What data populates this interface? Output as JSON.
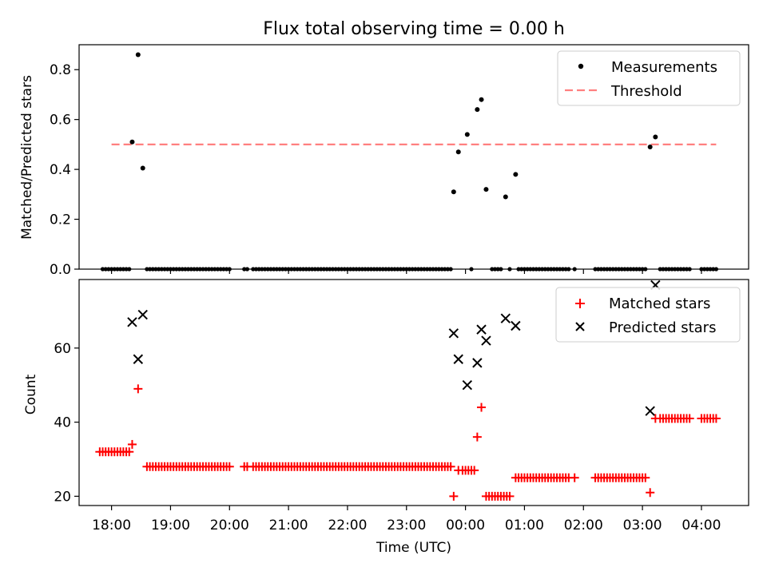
{
  "title": "Flux total observing time = 0.00 h",
  "chart_data": [
    {
      "type": "scatter",
      "ylabel": "Matched/Predicted stars",
      "xlabel": "",
      "xlim_hours": [
        17.45,
        28.8
      ],
      "ylim": [
        0,
        0.9
      ],
      "yticks": [
        0.0,
        0.2,
        0.4,
        0.6,
        0.8
      ],
      "ytick_labels": [
        "0.0",
        "0.2",
        "0.4",
        "0.6",
        "0.8"
      ],
      "legend": {
        "placement": "upper-right",
        "entries": [
          {
            "label": "Measurements",
            "marker": "dot"
          },
          {
            "label": "Threshold",
            "marker": "dashed-line"
          }
        ]
      },
      "threshold": {
        "value": 0.5,
        "x_range_hours": [
          18.0,
          28.25
        ],
        "color": "#ff7f7f"
      },
      "measurements": [
        [
          18.35,
          0.51
        ],
        [
          18.45,
          0.86
        ],
        [
          18.53,
          0.405
        ],
        [
          23.8,
          0.31
        ],
        [
          23.88,
          0.47
        ],
        [
          24.03,
          0.54
        ],
        [
          24.2,
          0.64
        ],
        [
          24.27,
          0.68
        ],
        [
          24.35,
          0.32
        ],
        [
          24.68,
          0.29
        ],
        [
          24.85,
          0.38
        ],
        [
          27.13,
          0.49
        ],
        [
          27.22,
          0.53
        ]
      ],
      "zero_times": [
        17.85,
        17.9,
        17.95,
        18.0,
        18.05,
        18.1,
        18.15,
        18.2,
        18.25,
        18.3,
        18.6,
        18.65,
        18.7,
        18.75,
        18.8,
        18.85,
        18.9,
        18.95,
        19.0,
        19.05,
        19.1,
        19.15,
        19.2,
        19.25,
        19.3,
        19.35,
        19.4,
        19.45,
        19.5,
        19.55,
        19.6,
        19.65,
        19.7,
        19.75,
        19.8,
        19.85,
        19.9,
        19.95,
        20.0,
        20.25,
        20.3,
        20.4,
        20.45,
        20.5,
        20.55,
        20.6,
        20.65,
        20.7,
        20.75,
        20.8,
        20.85,
        20.9,
        20.95,
        21.0,
        21.05,
        21.1,
        21.15,
        21.2,
        21.25,
        21.3,
        21.35,
        21.4,
        21.45,
        21.5,
        21.55,
        21.6,
        21.65,
        21.7,
        21.75,
        21.8,
        21.85,
        21.9,
        21.95,
        22.0,
        22.05,
        22.1,
        22.15,
        22.2,
        22.25,
        22.3,
        22.35,
        22.4,
        22.45,
        22.5,
        22.55,
        22.6,
        22.65,
        22.7,
        22.75,
        22.8,
        22.85,
        22.9,
        22.95,
        23.0,
        23.05,
        23.1,
        23.15,
        23.2,
        23.25,
        23.3,
        23.35,
        23.4,
        23.45,
        23.5,
        23.55,
        23.6,
        23.65,
        23.7,
        23.75,
        24.1,
        24.45,
        24.5,
        24.55,
        24.6,
        24.75,
        24.9,
        24.95,
        25.0,
        25.05,
        25.1,
        25.15,
        25.2,
        25.25,
        25.3,
        25.35,
        25.4,
        25.45,
        25.5,
        25.55,
        25.6,
        25.65,
        25.7,
        25.75,
        25.85,
        26.2,
        26.25,
        26.3,
        26.35,
        26.4,
        26.45,
        26.5,
        26.55,
        26.6,
        26.65,
        26.7,
        26.75,
        26.8,
        26.85,
        26.9,
        26.95,
        27.0,
        27.05,
        27.3,
        27.35,
        27.4,
        27.45,
        27.5,
        27.55,
        27.6,
        27.65,
        27.7,
        27.75,
        27.8,
        28.0,
        28.05,
        28.1,
        28.15,
        28.2,
        28.25
      ]
    },
    {
      "type": "scatter",
      "ylabel": "Count",
      "xlabel": "Time (UTC)",
      "xlim_hours": [
        17.45,
        28.8
      ],
      "ylim": [
        17.5,
        78.5
      ],
      "yticks": [
        20,
        40,
        60
      ],
      "ytick_labels": [
        "20",
        "40",
        "60"
      ],
      "xticks_hours": [
        18,
        19,
        20,
        21,
        22,
        23,
        24,
        25,
        26,
        27,
        28
      ],
      "xtick_labels": [
        "18:00",
        "19:00",
        "20:00",
        "21:00",
        "22:00",
        "23:00",
        "00:00",
        "01:00",
        "02:00",
        "03:00",
        "04:00"
      ],
      "legend": {
        "placement": "upper-right",
        "entries": [
          {
            "label": "Matched stars",
            "marker": "plus",
            "color": "#ff0000"
          },
          {
            "label": "Predicted stars",
            "marker": "x",
            "color": "#000000"
          }
        ]
      },
      "matched_stars": [
        [
          17.8,
          32
        ],
        [
          17.85,
          32
        ],
        [
          17.9,
          32
        ],
        [
          17.95,
          32
        ],
        [
          18.0,
          32
        ],
        [
          18.05,
          32
        ],
        [
          18.1,
          32
        ],
        [
          18.15,
          32
        ],
        [
          18.2,
          32
        ],
        [
          18.25,
          32
        ],
        [
          18.3,
          32
        ],
        [
          18.35,
          34
        ],
        [
          18.45,
          49
        ],
        [
          18.6,
          28
        ],
        [
          18.65,
          28
        ],
        [
          18.7,
          28
        ],
        [
          18.75,
          28
        ],
        [
          18.8,
          28
        ],
        [
          18.85,
          28
        ],
        [
          18.9,
          28
        ],
        [
          18.95,
          28
        ],
        [
          19.0,
          28
        ],
        [
          19.05,
          28
        ],
        [
          19.1,
          28
        ],
        [
          19.15,
          28
        ],
        [
          19.2,
          28
        ],
        [
          19.25,
          28
        ],
        [
          19.3,
          28
        ],
        [
          19.35,
          28
        ],
        [
          19.4,
          28
        ],
        [
          19.45,
          28
        ],
        [
          19.5,
          28
        ],
        [
          19.55,
          28
        ],
        [
          19.6,
          28
        ],
        [
          19.65,
          28
        ],
        [
          19.7,
          28
        ],
        [
          19.75,
          28
        ],
        [
          19.8,
          28
        ],
        [
          19.85,
          28
        ],
        [
          19.9,
          28
        ],
        [
          19.95,
          28
        ],
        [
          20.0,
          28
        ],
        [
          20.25,
          28
        ],
        [
          20.3,
          28
        ],
        [
          20.4,
          28
        ],
        [
          20.45,
          28
        ],
        [
          20.5,
          28
        ],
        [
          20.55,
          28
        ],
        [
          20.6,
          28
        ],
        [
          20.65,
          28
        ],
        [
          20.7,
          28
        ],
        [
          20.75,
          28
        ],
        [
          20.8,
          28
        ],
        [
          20.85,
          28
        ],
        [
          20.9,
          28
        ],
        [
          20.95,
          28
        ],
        [
          21.0,
          28
        ],
        [
          21.05,
          28
        ],
        [
          21.1,
          28
        ],
        [
          21.15,
          28
        ],
        [
          21.2,
          28
        ],
        [
          21.25,
          28
        ],
        [
          21.3,
          28
        ],
        [
          21.35,
          28
        ],
        [
          21.4,
          28
        ],
        [
          21.45,
          28
        ],
        [
          21.5,
          28
        ],
        [
          21.55,
          28
        ],
        [
          21.6,
          28
        ],
        [
          21.65,
          28
        ],
        [
          21.7,
          28
        ],
        [
          21.75,
          28
        ],
        [
          21.8,
          28
        ],
        [
          21.85,
          28
        ],
        [
          21.9,
          28
        ],
        [
          21.95,
          28
        ],
        [
          22.0,
          28
        ],
        [
          22.05,
          28
        ],
        [
          22.1,
          28
        ],
        [
          22.15,
          28
        ],
        [
          22.2,
          28
        ],
        [
          22.25,
          28
        ],
        [
          22.3,
          28
        ],
        [
          22.35,
          28
        ],
        [
          22.4,
          28
        ],
        [
          22.45,
          28
        ],
        [
          22.5,
          28
        ],
        [
          22.55,
          28
        ],
        [
          22.6,
          28
        ],
        [
          22.65,
          28
        ],
        [
          22.7,
          28
        ],
        [
          22.75,
          28
        ],
        [
          22.8,
          28
        ],
        [
          22.85,
          28
        ],
        [
          22.9,
          28
        ],
        [
          22.95,
          28
        ],
        [
          23.0,
          28
        ],
        [
          23.05,
          28
        ],
        [
          23.1,
          28
        ],
        [
          23.15,
          28
        ],
        [
          23.2,
          28
        ],
        [
          23.25,
          28
        ],
        [
          23.3,
          28
        ],
        [
          23.35,
          28
        ],
        [
          23.4,
          28
        ],
        [
          23.45,
          28
        ],
        [
          23.5,
          28
        ],
        [
          23.55,
          28
        ],
        [
          23.6,
          28
        ],
        [
          23.65,
          28
        ],
        [
          23.7,
          28
        ],
        [
          23.75,
          28
        ],
        [
          23.8,
          20
        ],
        [
          23.88,
          27
        ],
        [
          23.95,
          27
        ],
        [
          24.0,
          27
        ],
        [
          24.05,
          27
        ],
        [
          24.1,
          27
        ],
        [
          24.15,
          27
        ],
        [
          24.2,
          36
        ],
        [
          24.27,
          44
        ],
        [
          24.35,
          20
        ],
        [
          24.4,
          20
        ],
        [
          24.45,
          20
        ],
        [
          24.5,
          20
        ],
        [
          24.55,
          20
        ],
        [
          24.6,
          20
        ],
        [
          24.65,
          20
        ],
        [
          24.7,
          20
        ],
        [
          24.75,
          20
        ],
        [
          24.85,
          25
        ],
        [
          24.9,
          25
        ],
        [
          24.95,
          25
        ],
        [
          25.0,
          25
        ],
        [
          25.05,
          25
        ],
        [
          25.1,
          25
        ],
        [
          25.15,
          25
        ],
        [
          25.2,
          25
        ],
        [
          25.25,
          25
        ],
        [
          25.3,
          25
        ],
        [
          25.35,
          25
        ],
        [
          25.4,
          25
        ],
        [
          25.45,
          25
        ],
        [
          25.5,
          25
        ],
        [
          25.55,
          25
        ],
        [
          25.6,
          25
        ],
        [
          25.65,
          25
        ],
        [
          25.7,
          25
        ],
        [
          25.75,
          25
        ],
        [
          25.85,
          25
        ],
        [
          26.2,
          25
        ],
        [
          26.25,
          25
        ],
        [
          26.3,
          25
        ],
        [
          26.35,
          25
        ],
        [
          26.4,
          25
        ],
        [
          26.45,
          25
        ],
        [
          26.5,
          25
        ],
        [
          26.55,
          25
        ],
        [
          26.6,
          25
        ],
        [
          26.65,
          25
        ],
        [
          26.7,
          25
        ],
        [
          26.75,
          25
        ],
        [
          26.8,
          25
        ],
        [
          26.85,
          25
        ],
        [
          26.9,
          25
        ],
        [
          26.95,
          25
        ],
        [
          27.0,
          25
        ],
        [
          27.05,
          25
        ],
        [
          27.13,
          21
        ],
        [
          27.22,
          41
        ],
        [
          27.3,
          41
        ],
        [
          27.35,
          41
        ],
        [
          27.4,
          41
        ],
        [
          27.45,
          41
        ],
        [
          27.5,
          41
        ],
        [
          27.55,
          41
        ],
        [
          27.6,
          41
        ],
        [
          27.65,
          41
        ],
        [
          27.7,
          41
        ],
        [
          27.75,
          41
        ],
        [
          27.8,
          41
        ],
        [
          28.0,
          41
        ],
        [
          28.05,
          41
        ],
        [
          28.1,
          41
        ],
        [
          28.15,
          41
        ],
        [
          28.2,
          41
        ],
        [
          28.25,
          41
        ]
      ],
      "predicted_stars": [
        [
          18.35,
          67
        ],
        [
          18.45,
          57
        ],
        [
          18.53,
          69
        ],
        [
          23.8,
          64
        ],
        [
          23.88,
          57
        ],
        [
          24.03,
          50
        ],
        [
          24.2,
          56
        ],
        [
          24.27,
          65
        ],
        [
          24.35,
          62
        ],
        [
          24.68,
          68
        ],
        [
          24.85,
          66
        ],
        [
          27.13,
          43
        ],
        [
          27.22,
          77
        ]
      ]
    }
  ]
}
